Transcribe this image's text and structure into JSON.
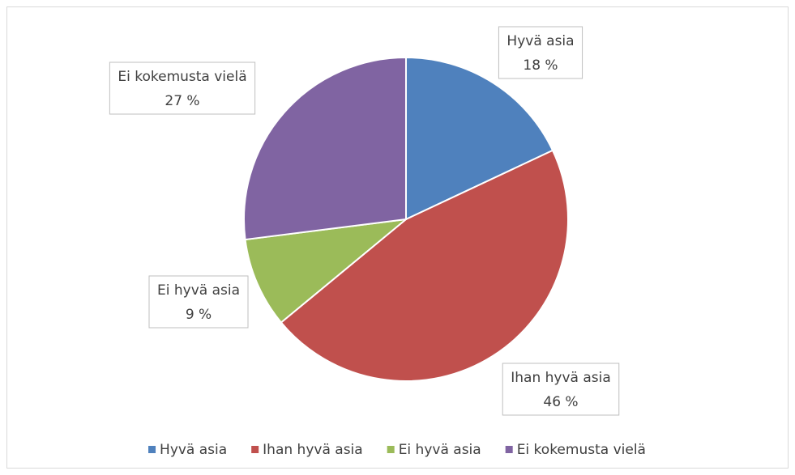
{
  "chart_data": {
    "type": "pie",
    "categories": [
      "Hyvä asia",
      "Ihan hyvä asia",
      "Ei hyvä asia",
      "Ei kokemusta vielä"
    ],
    "values": [
      18,
      46,
      9,
      27
    ],
    "value_labels": [
      "18 %",
      "46 %",
      "9 %",
      "27 %"
    ],
    "colors": [
      "#4f81bd",
      "#c0504d",
      "#9bbb59",
      "#8064a2"
    ],
    "legend": "bottom"
  }
}
